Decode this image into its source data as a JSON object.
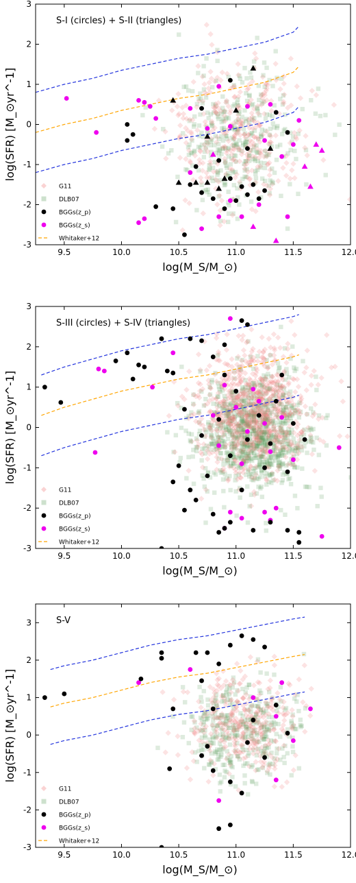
{
  "chart_data": [
    {
      "type": "scatter",
      "title": "S-I (circles) + S-II (triangles)",
      "xlabel": "log(M_S/M_⊙)",
      "ylabel": "log(SFR)   [M_⊙yr^-1]",
      "xlim": [
        9.25,
        12.0
      ],
      "ylim": [
        -3,
        3
      ],
      "xticks": [
        "9.5",
        "10.0",
        "10.5",
        "11.0",
        "11.5",
        "12.0"
      ],
      "yticks": [
        "-3",
        "-2",
        "-1",
        "0",
        "1",
        "2",
        "3"
      ],
      "legend": {
        "placement": "lower-left",
        "entries": [
          "G11",
          "DLB07",
          "BGGs(z_p)",
          "BGGs(z_s)",
          "Whitaker+12"
        ]
      },
      "cloud": {
        "center": [
          11.0,
          -0.3
        ],
        "spread": [
          0.28,
          0.9
        ],
        "count": 700,
        "seed": 11,
        "red_shift": 0.25
      },
      "lines": {
        "x": [
          9.25,
          9.5,
          9.75,
          10.0,
          10.25,
          10.5,
          10.75,
          11.0,
          11.25,
          11.5,
          11.55
        ],
        "blue_upper": [
          0.8,
          1.0,
          1.15,
          1.35,
          1.5,
          1.65,
          1.75,
          1.9,
          2.05,
          2.3,
          2.45
        ],
        "orange": [
          -0.2,
          0.0,
          0.15,
          0.35,
          0.5,
          0.65,
          0.75,
          0.9,
          1.05,
          1.3,
          1.45
        ],
        "blue_lower": [
          -1.2,
          -1.0,
          -0.85,
          -0.65,
          -0.5,
          -0.35,
          -0.25,
          -0.1,
          0.05,
          0.3,
          0.45
        ]
      },
      "bggs_zp_circles": [
        {
          "x": 10.05,
          "y": 0.0
        },
        {
          "x": 10.05,
          "y": -0.4
        },
        {
          "x": 10.1,
          "y": -0.25
        },
        {
          "x": 10.3,
          "y": -2.05
        },
        {
          "x": 10.45,
          "y": -2.1
        },
        {
          "x": 10.55,
          "y": -2.75
        },
        {
          "x": 10.6,
          "y": -1.5
        },
        {
          "x": 10.7,
          "y": -1.7
        },
        {
          "x": 10.8,
          "y": -1.85
        },
        {
          "x": 10.9,
          "y": -2.1
        },
        {
          "x": 11.0,
          "y": -1.9
        },
        {
          "x": 11.05,
          "y": -1.55
        },
        {
          "x": 11.1,
          "y": -1.75
        },
        {
          "x": 11.15,
          "y": -1.5
        },
        {
          "x": 11.2,
          "y": -1.85
        },
        {
          "x": 11.25,
          "y": -1.65
        },
        {
          "x": 10.95,
          "y": 1.1
        },
        {
          "x": 10.85,
          "y": -0.9
        },
        {
          "x": 11.35,
          "y": 0.3
        },
        {
          "x": 10.7,
          "y": 0.4
        },
        {
          "x": 11.45,
          "y": -0.2
        },
        {
          "x": 11.1,
          "y": -0.6
        },
        {
          "x": 10.95,
          "y": -1.35
        },
        {
          "x": 10.65,
          "y": -1.05
        }
      ],
      "bggs_zp_triangles": [
        {
          "x": 10.45,
          "y": 0.6
        },
        {
          "x": 10.5,
          "y": -1.45
        },
        {
          "x": 10.65,
          "y": -1.45
        },
        {
          "x": 10.75,
          "y": -1.45
        },
        {
          "x": 10.85,
          "y": -1.6
        },
        {
          "x": 10.9,
          "y": -1.35
        },
        {
          "x": 11.15,
          "y": 1.4
        },
        {
          "x": 11.3,
          "y": -0.6
        },
        {
          "x": 10.75,
          "y": -0.3
        },
        {
          "x": 11.0,
          "y": 0.35
        }
      ],
      "bggs_zs_circles": [
        {
          "x": 9.52,
          "y": 0.65
        },
        {
          "x": 9.78,
          "y": -0.2
        },
        {
          "x": 10.15,
          "y": 0.6
        },
        {
          "x": 10.2,
          "y": 0.55
        },
        {
          "x": 10.25,
          "y": 0.45
        },
        {
          "x": 10.2,
          "y": -2.35
        },
        {
          "x": 10.15,
          "y": -2.45
        },
        {
          "x": 10.3,
          "y": 0.15
        },
        {
          "x": 10.6,
          "y": 0.4
        },
        {
          "x": 10.75,
          "y": -0.1
        },
        {
          "x": 10.85,
          "y": -2.3
        },
        {
          "x": 10.95,
          "y": -1.9
        },
        {
          "x": 11.05,
          "y": -2.3
        },
        {
          "x": 11.2,
          "y": -2.0
        },
        {
          "x": 11.3,
          "y": 0.5
        },
        {
          "x": 11.4,
          "y": -0.8
        },
        {
          "x": 11.5,
          "y": -0.5
        },
        {
          "x": 11.45,
          "y": -2.3
        },
        {
          "x": 10.6,
          "y": -1.2
        },
        {
          "x": 10.85,
          "y": 0.95
        },
        {
          "x": 11.1,
          "y": 0.45
        },
        {
          "x": 11.25,
          "y": -0.4
        },
        {
          "x": 10.95,
          "y": -0.05
        },
        {
          "x": 11.55,
          "y": 0.1
        },
        {
          "x": 10.7,
          "y": -2.6
        }
      ],
      "bggs_zs_triangles": [
        {
          "x": 11.7,
          "y": -0.5
        },
        {
          "x": 11.75,
          "y": -0.65
        },
        {
          "x": 11.6,
          "y": -1.05
        },
        {
          "x": 11.65,
          "y": -1.55
        },
        {
          "x": 11.35,
          "y": -2.9
        },
        {
          "x": 11.15,
          "y": -2.55
        },
        {
          "x": 10.8,
          "y": -0.75
        }
      ]
    },
    {
      "type": "scatter",
      "title": "S-III (circles) + S-IV (triangles)",
      "xlabel": "log(M_S/M_⊙)",
      "ylabel": "log(SFR)   [M_⊙yr^-1]",
      "xlim": [
        9.25,
        12.0
      ],
      "ylim": [
        -3,
        3
      ],
      "xticks": [
        "9.5",
        "10.0",
        "10.5",
        "11.0",
        "11.5",
        "12.0"
      ],
      "yticks": [
        "-3",
        "-2",
        "-1",
        "0",
        "1",
        "2",
        "3"
      ],
      "legend": {
        "placement": "lower-left",
        "entries": [
          "G11",
          "DLB07",
          "BGGs(z_p)",
          "BGGs(z_s)",
          "Whitaker+12"
        ]
      },
      "cloud": {
        "center": [
          11.15,
          0.0
        ],
        "spread": [
          0.25,
          0.75
        ],
        "count": 1800,
        "seed": 23,
        "red_shift": 0.6
      },
      "lines": {
        "x": [
          9.3,
          9.5,
          9.75,
          10.0,
          10.25,
          10.5,
          10.75,
          11.0,
          11.25,
          11.5,
          11.55
        ],
        "blue_upper": [
          1.3,
          1.5,
          1.7,
          1.9,
          2.05,
          2.2,
          2.3,
          2.45,
          2.6,
          2.75,
          2.8
        ],
        "orange": [
          0.3,
          0.5,
          0.7,
          0.9,
          1.05,
          1.2,
          1.3,
          1.45,
          1.6,
          1.75,
          1.8
        ],
        "blue_lower": [
          -0.7,
          -0.5,
          -0.3,
          -0.1,
          0.05,
          0.2,
          0.3,
          0.45,
          0.6,
          0.75,
          0.8
        ]
      },
      "bggs_zp_circles": [
        {
          "x": 9.33,
          "y": 1.0
        },
        {
          "x": 9.47,
          "y": 0.62
        },
        {
          "x": 9.95,
          "y": 1.65
        },
        {
          "x": 10.05,
          "y": 1.85
        },
        {
          "x": 10.1,
          "y": 1.2
        },
        {
          "x": 10.15,
          "y": 1.55
        },
        {
          "x": 10.2,
          "y": 1.5
        },
        {
          "x": 10.35,
          "y": 2.2
        },
        {
          "x": 10.4,
          "y": 1.4
        },
        {
          "x": 10.45,
          "y": 1.35
        },
        {
          "x": 10.6,
          "y": 2.2
        },
        {
          "x": 10.7,
          "y": 2.15
        },
        {
          "x": 10.8,
          "y": 1.75
        },
        {
          "x": 10.9,
          "y": 2.05
        },
        {
          "x": 11.05,
          "y": 2.65
        },
        {
          "x": 11.1,
          "y": 2.55
        },
        {
          "x": 10.55,
          "y": 0.45
        },
        {
          "x": 10.5,
          "y": -0.95
        },
        {
          "x": 10.45,
          "y": -1.35
        },
        {
          "x": 10.6,
          "y": -1.55
        },
        {
          "x": 10.55,
          "y": -2.05
        },
        {
          "x": 10.65,
          "y": -1.8
        },
        {
          "x": 10.75,
          "y": -1.2
        },
        {
          "x": 10.8,
          "y": -2.15
        },
        {
          "x": 10.85,
          "y": -2.6
        },
        {
          "x": 10.95,
          "y": -2.35
        },
        {
          "x": 10.9,
          "y": -2.5
        },
        {
          "x": 11.05,
          "y": -1.55
        },
        {
          "x": 11.15,
          "y": -2.55
        },
        {
          "x": 11.3,
          "y": -2.35
        },
        {
          "x": 11.45,
          "y": -2.55
        },
        {
          "x": 11.55,
          "y": -2.85
        },
        {
          "x": 11.55,
          "y": -2.6
        },
        {
          "x": 10.35,
          "y": -3.0
        },
        {
          "x": 11.0,
          "y": 0.9
        },
        {
          "x": 11.2,
          "y": 0.3
        },
        {
          "x": 11.3,
          "y": -0.4
        },
        {
          "x": 10.95,
          "y": -0.7
        },
        {
          "x": 11.4,
          "y": 1.3
        },
        {
          "x": 11.5,
          "y": 0.1
        },
        {
          "x": 10.85,
          "y": 0.2
        },
        {
          "x": 11.25,
          "y": -1.0
        },
        {
          "x": 11.6,
          "y": -0.3
        },
        {
          "x": 10.7,
          "y": -0.2
        },
        {
          "x": 11.35,
          "y": 0.65
        },
        {
          "x": 11.1,
          "y": -0.3
        },
        {
          "x": 10.9,
          "y": 1.3
        },
        {
          "x": 11.45,
          "y": -1.1
        }
      ],
      "bggs_zp_triangles": [],
      "bggs_zs_circles": [
        {
          "x": 9.77,
          "y": -0.62
        },
        {
          "x": 9.8,
          "y": 1.45
        },
        {
          "x": 9.85,
          "y": 1.4
        },
        {
          "x": 10.27,
          "y": 1.0
        },
        {
          "x": 10.45,
          "y": 1.85
        },
        {
          "x": 10.9,
          "y": 1.05
        },
        {
          "x": 10.95,
          "y": 2.7
        },
        {
          "x": 11.0,
          "y": 0.5
        },
        {
          "x": 11.1,
          "y": -0.1
        },
        {
          "x": 11.2,
          "y": 0.65
        },
        {
          "x": 11.3,
          "y": -0.6
        },
        {
          "x": 11.4,
          "y": 0.25
        },
        {
          "x": 11.35,
          "y": -2.0
        },
        {
          "x": 11.3,
          "y": -2.3
        },
        {
          "x": 11.25,
          "y": -2.1
        },
        {
          "x": 11.05,
          "y": -2.25
        },
        {
          "x": 10.9,
          "y": -2.5
        },
        {
          "x": 10.95,
          "y": -2.1
        },
        {
          "x": 11.75,
          "y": -2.7
        },
        {
          "x": 11.9,
          "y": -0.5
        },
        {
          "x": 11.15,
          "y": 0.95
        },
        {
          "x": 10.85,
          "y": -0.45
        },
        {
          "x": 11.5,
          "y": -0.8
        },
        {
          "x": 11.25,
          "y": 0.1
        },
        {
          "x": 11.05,
          "y": -0.9
        },
        {
          "x": 10.8,
          "y": 0.3
        }
      ],
      "bggs_zs_triangles": []
    },
    {
      "type": "scatter",
      "title": "S-V",
      "xlabel": "log(M_S/M_⊙)",
      "ylabel": "log(SFR)   [M_⊙yr^-1]",
      "xlim": [
        9.25,
        12.0
      ],
      "ylim": [
        -3,
        3.5
      ],
      "xticks": [
        "9.5",
        "10.0",
        "10.5",
        "11.0",
        "11.5",
        "12.0"
      ],
      "yticks": [
        "-3",
        "-2",
        "-1",
        "0",
        "1",
        "2",
        "3"
      ],
      "legend": {
        "placement": "lower-left",
        "entries": [
          "G11",
          "DLB07",
          "BGGs(z_p)",
          "BGGs(z_s)",
          "Whitaker+12"
        ]
      },
      "cloud": {
        "center": [
          11.05,
          0.15
        ],
        "spread": [
          0.25,
          0.65
        ],
        "count": 700,
        "seed": 37,
        "red_shift": 0.35
      },
      "lines": {
        "x": [
          9.38,
          9.5,
          9.75,
          10.0,
          10.25,
          10.5,
          10.75,
          11.0,
          11.25,
          11.5,
          11.6
        ],
        "blue_upper": [
          1.75,
          1.85,
          2.0,
          2.2,
          2.4,
          2.55,
          2.65,
          2.8,
          2.95,
          3.1,
          3.15
        ],
        "orange": [
          0.75,
          0.85,
          1.0,
          1.2,
          1.4,
          1.55,
          1.65,
          1.8,
          1.95,
          2.1,
          2.15
        ],
        "blue_lower": [
          -0.25,
          -0.15,
          0.0,
          0.2,
          0.4,
          0.55,
          0.65,
          0.8,
          0.95,
          1.1,
          1.15
        ]
      },
      "bggs_zp_circles": [
        {
          "x": 9.33,
          "y": 1.0
        },
        {
          "x": 9.5,
          "y": 1.1
        },
        {
          "x": 10.17,
          "y": 1.5
        },
        {
          "x": 10.35,
          "y": 2.05
        },
        {
          "x": 10.35,
          "y": 2.2
        },
        {
          "x": 10.42,
          "y": -0.9
        },
        {
          "x": 10.45,
          "y": 0.7
        },
        {
          "x": 10.65,
          "y": 2.2
        },
        {
          "x": 10.7,
          "y": 1.45
        },
        {
          "x": 10.75,
          "y": 2.2
        },
        {
          "x": 10.85,
          "y": 1.9
        },
        {
          "x": 10.95,
          "y": 2.4
        },
        {
          "x": 11.05,
          "y": 2.65
        },
        {
          "x": 11.15,
          "y": 2.55
        },
        {
          "x": 11.25,
          "y": 2.35
        },
        {
          "x": 10.7,
          "y": -0.55
        },
        {
          "x": 10.75,
          "y": -0.3
        },
        {
          "x": 10.8,
          "y": -0.95
        },
        {
          "x": 10.95,
          "y": -1.25
        },
        {
          "x": 11.05,
          "y": -1.55
        },
        {
          "x": 10.85,
          "y": -2.5
        },
        {
          "x": 10.95,
          "y": -2.4
        },
        {
          "x": 10.35,
          "y": -3.0
        },
        {
          "x": 11.35,
          "y": 0.8
        },
        {
          "x": 11.15,
          "y": 0.4
        },
        {
          "x": 11.45,
          "y": 0.05
        },
        {
          "x": 11.25,
          "y": -0.6
        },
        {
          "x": 10.8,
          "y": 0.7
        },
        {
          "x": 11.1,
          "y": -0.2
        }
      ],
      "bggs_zp_triangles": [],
      "bggs_zs_circles": [
        {
          "x": 10.15,
          "y": 1.4
        },
        {
          "x": 10.6,
          "y": 1.75
        },
        {
          "x": 11.15,
          "y": 1.0
        },
        {
          "x": 11.35,
          "y": 0.5
        },
        {
          "x": 11.4,
          "y": 1.4
        },
        {
          "x": 11.5,
          "y": -0.15
        },
        {
          "x": 11.65,
          "y": 0.7
        },
        {
          "x": 11.35,
          "y": -1.2
        },
        {
          "x": 10.85,
          "y": -1.75
        }
      ],
      "bggs_zs_triangles": []
    }
  ],
  "colors": {
    "g11": "#f08080",
    "dlb07": "#5a9a5a",
    "bggs_zp": "#000000",
    "bggs_zs": "#ee00ee",
    "whitaker": "#ffa500",
    "ms_envelope": "#2233dd"
  }
}
